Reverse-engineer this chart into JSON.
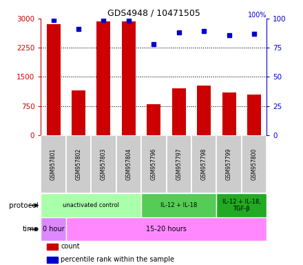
{
  "title": "GDS4948 / 10471505",
  "samples": [
    "GSM957801",
    "GSM957802",
    "GSM957803",
    "GSM957804",
    "GSM957796",
    "GSM957797",
    "GSM957798",
    "GSM957799",
    "GSM957800"
  ],
  "bar_values": [
    2850,
    1150,
    2930,
    2920,
    800,
    1200,
    1270,
    1100,
    1050
  ],
  "percentile_values": [
    99,
    91,
    99,
    98,
    78,
    88,
    89,
    86,
    87
  ],
  "ylim_left": [
    0,
    3000
  ],
  "ylim_right": [
    0,
    100
  ],
  "yticks_left": [
    0,
    750,
    1500,
    2250,
    3000
  ],
  "yticks_right": [
    0,
    25,
    50,
    75,
    100
  ],
  "bar_color": "#cc0000",
  "dot_color": "#0000cc",
  "sample_box_color": "#cccccc",
  "protocol_groups": [
    {
      "label": "unactivated control",
      "start": 0,
      "end": 4,
      "color": "#aaffaa"
    },
    {
      "label": "IL-12 + IL-18",
      "start": 4,
      "end": 7,
      "color": "#55cc55"
    },
    {
      "label": "IL-12 + IL-18,\nTGF-β",
      "start": 7,
      "end": 9,
      "color": "#22aa22"
    }
  ],
  "time_groups": [
    {
      "label": "0 hour",
      "start": 0,
      "end": 1,
      "color": "#dd88ff"
    },
    {
      "label": "15-20 hours",
      "start": 1,
      "end": 9,
      "color": "#ff88ff"
    }
  ],
  "legend_items": [
    {
      "color": "#cc0000",
      "label": "count"
    },
    {
      "color": "#0000cc",
      "label": "percentile rank within the sample"
    }
  ],
  "left_axis_color": "#cc0000",
  "right_axis_color": "#0000cc"
}
